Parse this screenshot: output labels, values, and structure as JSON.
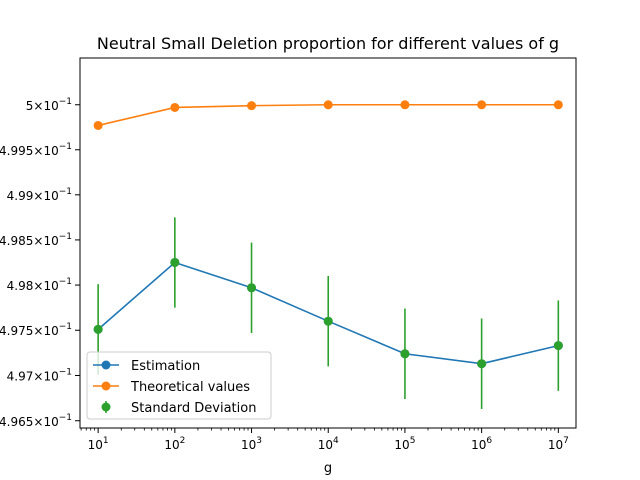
{
  "chart_data": {
    "type": "line",
    "title": "Neutral Small Deletion proportion for different values of g",
    "xlabel": "g",
    "ylabel": "",
    "x_scale": "log",
    "y_scale": "log",
    "x": [
      10,
      100,
      1000,
      10000,
      100000,
      1000000,
      10000000
    ],
    "x_tick_labels": [
      {
        "base": "10",
        "exp": "1"
      },
      {
        "base": "10",
        "exp": "2"
      },
      {
        "base": "10",
        "exp": "3"
      },
      {
        "base": "10",
        "exp": "4"
      },
      {
        "base": "10",
        "exp": "5"
      },
      {
        "base": "10",
        "exp": "6"
      },
      {
        "base": "10",
        "exp": "7"
      }
    ],
    "y_ticks": [
      0.4965,
      0.497,
      0.4975,
      0.498,
      0.4985,
      0.499,
      0.4995,
      0.5
    ],
    "y_tick_labels": [
      {
        "mant": "4.965",
        "base": "10",
        "exp": "−1"
      },
      {
        "mant": "4.97",
        "base": "10",
        "exp": "−1"
      },
      {
        "mant": "4.975",
        "base": "10",
        "exp": "−1"
      },
      {
        "mant": "4.98",
        "base": "10",
        "exp": "−1"
      },
      {
        "mant": "4.985",
        "base": "10",
        "exp": "−1"
      },
      {
        "mant": "4.99",
        "base": "10",
        "exp": "−1"
      },
      {
        "mant": "4.995",
        "base": "10",
        "exp": "−1"
      },
      {
        "mant": "5",
        "base": "10",
        "exp": "−1"
      }
    ],
    "xlim": [
      5.8,
      17000000
    ],
    "ylim": [
      0.49642,
      0.50052
    ],
    "grid": false,
    "legend_position": "lower left",
    "series": [
      {
        "name": "Estimation",
        "color": "#1f77b4",
        "marker": "circle",
        "values": [
          0.49751,
          0.49825,
          0.49797,
          0.4976,
          0.49724,
          0.49713,
          0.49733
        ]
      },
      {
        "name": "Theoretical values",
        "color": "#ff7f0e",
        "marker": "circle",
        "values": [
          0.49977,
          0.49997,
          0.49999,
          0.5,
          0.5,
          0.5,
          0.5
        ]
      },
      {
        "name": "Standard Deviation",
        "color": "#2ca02c",
        "marker": "circle",
        "kind": "errorbar",
        "values": [
          0.49751,
          0.49825,
          0.49797,
          0.4976,
          0.49724,
          0.49713,
          0.49733
        ],
        "errors": [
          0.0005,
          0.0005,
          0.0005,
          0.0005,
          0.0005,
          0.0005,
          0.0005
        ]
      }
    ]
  }
}
